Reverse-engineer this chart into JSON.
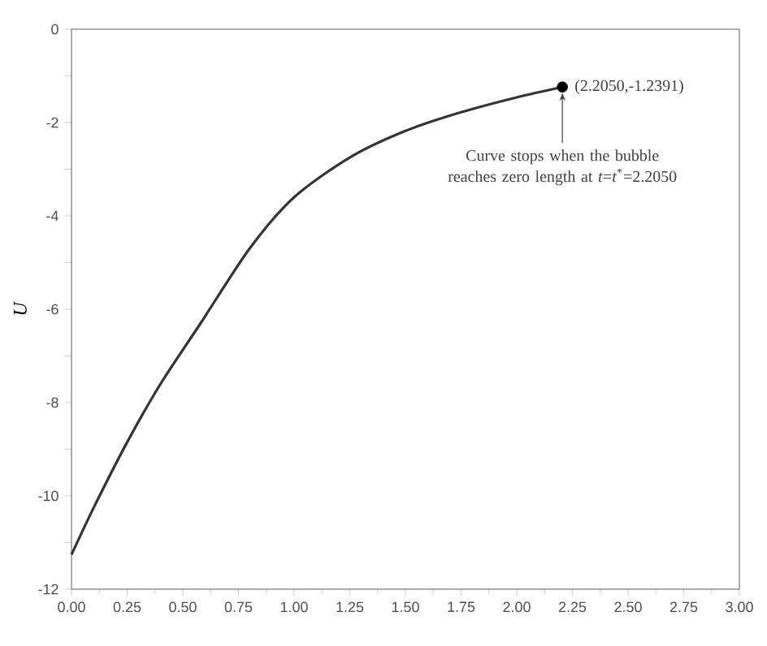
{
  "chart_data": {
    "type": "line",
    "ylabel": "U",
    "xlim": [
      0,
      3
    ],
    "ylim": [
      -12,
      0
    ],
    "xticks": [
      {
        "value": 0,
        "label": "0.00"
      },
      {
        "value": 0.25,
        "label": "0.25"
      },
      {
        "value": 0.5,
        "label": "0.50"
      },
      {
        "value": 0.75,
        "label": "0.75"
      },
      {
        "value": 1,
        "label": "1.00"
      },
      {
        "value": 1.25,
        "label": "1.25"
      },
      {
        "value": 1.5,
        "label": "1.50"
      },
      {
        "value": 1.75,
        "label": "1.75"
      },
      {
        "value": 2,
        "label": "2.00"
      },
      {
        "value": 2.25,
        "label": "2.25"
      },
      {
        "value": 2.5,
        "label": "2.50"
      },
      {
        "value": 2.75,
        "label": "2.75"
      },
      {
        "value": 3,
        "label": "3.00"
      }
    ],
    "yticks": [
      -12,
      {
        "value": -11,
        "label": null
      },
      -10,
      {
        "value": -9,
        "label": null
      },
      -8,
      {
        "value": -7,
        "label": null
      },
      -6,
      {
        "value": -5,
        "label": null
      },
      -4,
      {
        "value": -3,
        "label": null
      },
      -2,
      {
        "value": -1,
        "label": null
      },
      0
    ],
    "series": [
      {
        "color": "#333333",
        "marker": "none",
        "x": [
          0,
          0.1,
          0.25,
          0.4,
          0.58,
          0.8,
          1.0,
          1.25,
          1.5,
          1.75,
          2.0,
          2.205
        ],
        "values": [
          -11.26,
          -10.25,
          -8.85,
          -7.6,
          -6.3,
          -4.7,
          -3.6,
          -2.75,
          -2.18,
          -1.78,
          -1.46,
          -1.2391
        ]
      },
      {
        "type": "scatter",
        "color": "#000000",
        "marker": "circle",
        "x": [
          2.205
        ],
        "values": [
          -1.2391
        ]
      }
    ],
    "annotations": [
      {
        "text": "(2.2050,-1.2391)",
        "x": 2.205,
        "y": -1.2391
      },
      {
        "text": "Curve stops when the bubble reaches zero length at  *t*=*t*$^{*}$=2.2050",
        "x": 2.205,
        "y": -1.2391
      }
    ]
  }
}
